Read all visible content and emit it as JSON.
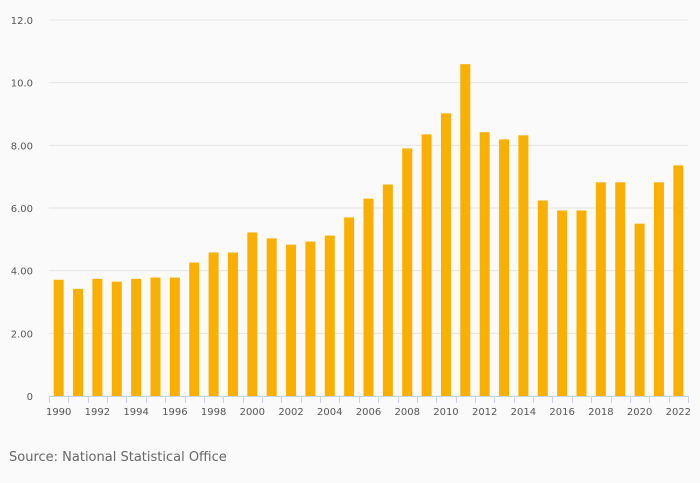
{
  "chart_data": {
    "type": "bar",
    "title": "",
    "xlabel": "",
    "ylabel": "",
    "ylim": [
      0,
      12
    ],
    "yticks": [
      0,
      2,
      4,
      6,
      8,
      10,
      12
    ],
    "ytick_labels": [
      "0",
      "2.00",
      "4.00",
      "6.00",
      "8.00",
      "10.0",
      "12.0"
    ],
    "grid": true,
    "color": "#f9b000",
    "categories": [
      "1990",
      "1991",
      "1992",
      "1993",
      "1994",
      "1995",
      "1996",
      "1997",
      "1998",
      "1999",
      "2000",
      "2001",
      "2002",
      "2003",
      "2004",
      "2005",
      "2006",
      "2007",
      "2008",
      "2009",
      "2010",
      "2011",
      "2012",
      "2013",
      "2014",
      "2015",
      "2016",
      "2017",
      "2018",
      "2019",
      "2020",
      "2021",
      "2022"
    ],
    "xtick_labels": [
      "1990",
      "1992",
      "1994",
      "1996",
      "1998",
      "2000",
      "2002",
      "2004",
      "2006",
      "2008",
      "2010",
      "2012",
      "2014",
      "2016",
      "2018",
      "2020",
      "2022"
    ],
    "values": [
      3.71,
      3.42,
      3.74,
      3.65,
      3.74,
      3.78,
      3.78,
      4.26,
      4.58,
      4.58,
      5.22,
      5.03,
      4.83,
      4.93,
      5.12,
      5.7,
      6.3,
      6.75,
      7.9,
      8.35,
      9.02,
      10.59,
      8.42,
      8.19,
      8.32,
      6.24,
      5.92,
      5.92,
      6.82,
      6.82,
      5.5,
      6.82,
      7.36
    ]
  },
  "source": "Source: National Statistical Office"
}
